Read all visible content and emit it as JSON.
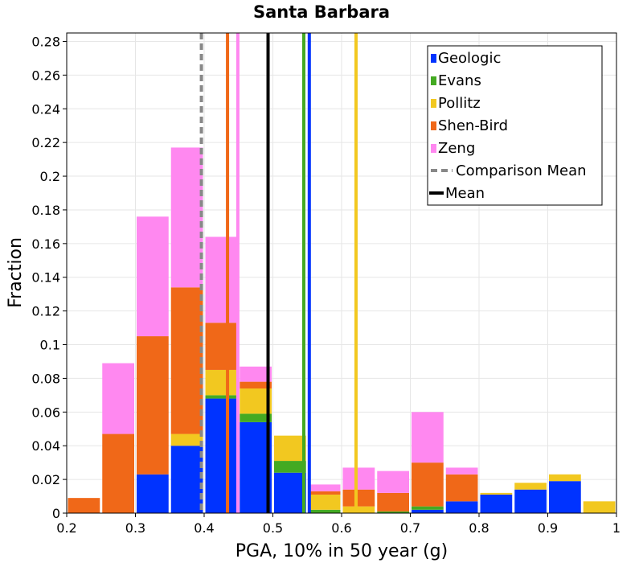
{
  "chart_data": {
    "type": "bar",
    "stacked": true,
    "title": "Santa Barbara",
    "xlabel": "PGA, 10% in 50 year (g)",
    "ylabel": "Fraction",
    "xlim": [
      0.2,
      1.0
    ],
    "ylim": [
      0,
      0.285
    ],
    "x_ticks": [
      0.2,
      0.3,
      0.4,
      0.5,
      0.6,
      0.7,
      0.8,
      0.9,
      1.0
    ],
    "x_tick_labels": [
      "0.2",
      "0.3",
      "0.4",
      "0.5",
      "0.6",
      "0.7",
      "0.8",
      "0.9",
      "1"
    ],
    "y_ticks": [
      0,
      0.02,
      0.04,
      0.06,
      0.08,
      0.1,
      0.12,
      0.14,
      0.16,
      0.18,
      0.2,
      0.22,
      0.24,
      0.26,
      0.28
    ],
    "y_tick_labels": [
      "0",
      "0.02",
      "0.04",
      "0.06",
      "0.08",
      "0.1",
      "0.12",
      "0.14",
      "0.16",
      "0.18",
      "0.2",
      "0.22",
      "0.24",
      "0.26",
      "0.28"
    ],
    "grid": true,
    "legend_position": "top-right",
    "bin_width": 0.05,
    "bin_starts": [
      0.2,
      0.25,
      0.3,
      0.35,
      0.4,
      0.45,
      0.5,
      0.55,
      0.6,
      0.65,
      0.7,
      0.75,
      0.8,
      0.85,
      0.9,
      0.95
    ],
    "series": [
      {
        "name": "Geologic",
        "color": "#0033ff",
        "values": [
          0,
          0,
          0.023,
          0.04,
          0.068,
          0.054,
          0.024,
          0,
          0,
          0,
          0.002,
          0.007,
          0.011,
          0.014,
          0.019,
          0
        ]
      },
      {
        "name": "Evans",
        "color": "#44aa22",
        "values": [
          0,
          0,
          0,
          0,
          0.002,
          0.005,
          0.007,
          0.002,
          0,
          0.001,
          0.002,
          0,
          0,
          0,
          0,
          0
        ]
      },
      {
        "name": "Pollitz",
        "color": "#f2c820",
        "values": [
          0,
          0,
          0,
          0.007,
          0.015,
          0.015,
          0.015,
          0.009,
          0.004,
          0,
          0,
          0,
          0.001,
          0.004,
          0.004,
          0.007
        ]
      },
      {
        "name": "Shen-Bird",
        "color": "#f06818",
        "values": [
          0.009,
          0.047,
          0.082,
          0.087,
          0.028,
          0.004,
          0,
          0.002,
          0.01,
          0.011,
          0.026,
          0.016,
          0,
          0,
          0,
          0
        ]
      },
      {
        "name": "Zeng",
        "color": "#ff88f0",
        "values": [
          0,
          0.042,
          0.071,
          0.083,
          0.051,
          0.009,
          0,
          0.004,
          0.013,
          0.013,
          0.03,
          0.004,
          0,
          0,
          0,
          0
        ]
      }
    ],
    "vertical_lines": [
      {
        "name": "Comparison Mean",
        "x": 0.396,
        "color": "#888888",
        "dashed": true
      },
      {
        "name": "Mean",
        "x": 0.493,
        "color": "#000000",
        "dashed": false
      },
      {
        "name": "Geologic",
        "x": 0.553,
        "color": "#0033ff",
        "dashed": false
      },
      {
        "name": "Evans",
        "x": 0.545,
        "color": "#44aa22",
        "dashed": false
      },
      {
        "name": "Pollitz",
        "x": 0.621,
        "color": "#f2c820",
        "dashed": false
      },
      {
        "name": "Shen-Bird",
        "x": 0.434,
        "color": "#f06818",
        "dashed": false
      },
      {
        "name": "Zeng",
        "x": 0.449,
        "color": "#ff88f0",
        "dashed": false
      }
    ],
    "legend": [
      {
        "label": "Geologic",
        "color": "#0033ff",
        "kind": "box"
      },
      {
        "label": "Evans",
        "color": "#44aa22",
        "kind": "box"
      },
      {
        "label": "Pollitz",
        "color": "#f2c820",
        "kind": "box"
      },
      {
        "label": "Shen-Bird",
        "color": "#f06818",
        "kind": "box"
      },
      {
        "label": "Zeng",
        "color": "#ff88f0",
        "kind": "box"
      },
      {
        "label": "Comparison Mean",
        "color": "#888888",
        "kind": "dashed"
      },
      {
        "label": "Mean",
        "color": "#000000",
        "kind": "line"
      }
    ]
  }
}
